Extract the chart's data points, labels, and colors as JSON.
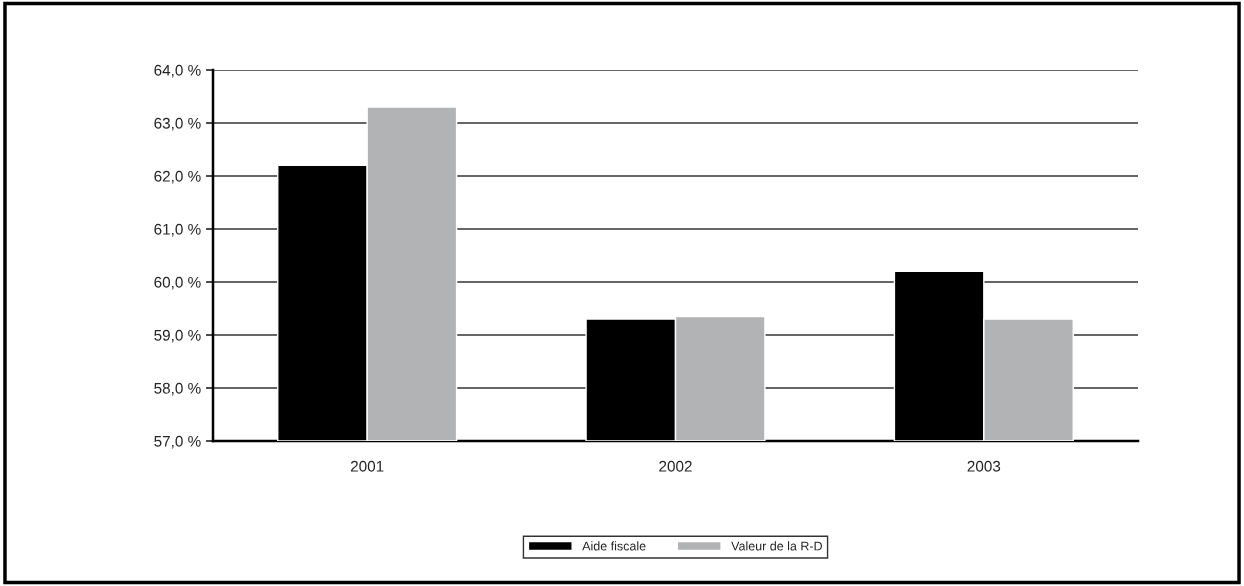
{
  "chart_data": {
    "type": "bar",
    "categories": [
      "2001",
      "2002",
      "2003"
    ],
    "series": [
      {
        "name": "Aide fiscale",
        "color": "#000000",
        "values": [
          62.2,
          59.3,
          60.2
        ]
      },
      {
        "name": "Valeur de la R-D",
        "color": "#b1b3b5",
        "values": [
          63.3,
          59.35,
          59.3
        ]
      }
    ],
    "ylim": [
      57,
      64
    ],
    "yticks": [
      {
        "value": 57,
        "label": "57,0 %"
      },
      {
        "value": 58,
        "label": "58,0 %"
      },
      {
        "value": 59,
        "label": "59,0 %"
      },
      {
        "value": 60,
        "label": "60,0 %"
      },
      {
        "value": 61,
        "label": "61,0 %"
      },
      {
        "value": 62,
        "label": "62,0 %"
      },
      {
        "value": 63,
        "label": "63,0 %"
      },
      {
        "value": 64,
        "label": "64,0 %"
      }
    ],
    "grid": "y",
    "legend": "bottom"
  }
}
